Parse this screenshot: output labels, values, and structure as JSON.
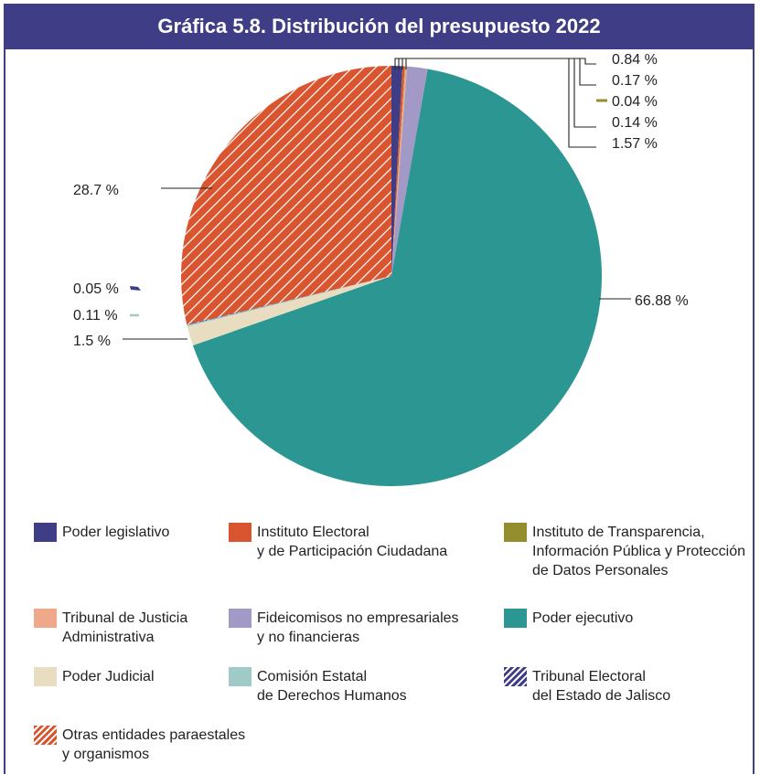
{
  "title": "Gráfica 5.8. Distribución del presupuesto 2022",
  "colors": {
    "frame": "#3f3d86",
    "legislativo": "#3f3d86",
    "electoral": "#d9552f",
    "transparencia": "#958e2f",
    "tribunal_justicia": "#f0a88a",
    "fideicomisos": "#a399c6",
    "ejecutivo": "#2c9692",
    "judicial": "#e8dcc1",
    "derechos_humanos": "#9fcac5",
    "tribunal_electoral": "#3f3d86",
    "otras": "#d9552f"
  },
  "chart_data": {
    "type": "pie",
    "title": "Gráfica 5.8. Distribución del presupuesto 2022",
    "slices": [
      {
        "name": "Poder legislativo",
        "value": 0.84,
        "label": "0.84 %",
        "color": "#3f3d86",
        "pattern": "solid"
      },
      {
        "name": "Instituto Electoral y de Participación Ciudadana",
        "value": 0.17,
        "label": "0.17 %",
        "color": "#d9552f",
        "pattern": "solid"
      },
      {
        "name": "Instituto de Transparencia, Información Pública y Protección de Datos Personales",
        "value": 0.04,
        "label": "0.04 %",
        "color": "#958e2f",
        "pattern": "solid"
      },
      {
        "name": "Tribunal de Justicia Administrativa",
        "value": 0.14,
        "label": "0.14 %",
        "color": "#f0a88a",
        "pattern": "solid"
      },
      {
        "name": "Fideicomisos no empresariales y no financieras",
        "value": 1.57,
        "label": "1.57 %",
        "color": "#a399c6",
        "pattern": "solid"
      },
      {
        "name": "Poder ejecutivo",
        "value": 66.88,
        "label": "66.88 %",
        "color": "#2c9692",
        "pattern": "solid"
      },
      {
        "name": "Poder Judicial",
        "value": 1.5,
        "label": "1.5 %",
        "color": "#e8dcc1",
        "pattern": "solid"
      },
      {
        "name": "Comisión Estatal de Derechos Humanos",
        "value": 0.11,
        "label": "0.11 %",
        "color": "#9fcac5",
        "pattern": "solid"
      },
      {
        "name": "Tribunal Electoral del Estado de Jalisco",
        "value": 0.05,
        "label": "0.05 %",
        "color": "#3f3d86",
        "pattern": "hatch"
      },
      {
        "name": "Otras entidades paraestales y organismos",
        "value": 28.7,
        "label": "28.7 %",
        "color": "#d9552f",
        "pattern": "hatch"
      }
    ],
    "legend_placement": "bottom"
  },
  "legend": [
    {
      "label": "Poder legislativo",
      "color": "#3f3d86",
      "pattern": "solid"
    },
    {
      "label": "Instituto Electoral\ny de Participación Ciudadana",
      "color": "#d9552f",
      "pattern": "solid"
    },
    {
      "label": "Instituto de Transparencia,\nInformación Pública y Protección\nde Datos Personales",
      "color": "#958e2f",
      "pattern": "solid"
    },
    {
      "label": "Tribunal de Justicia\nAdministrativa",
      "color": "#f0a88a",
      "pattern": "solid"
    },
    {
      "label": "Fideicomisos no empresariales\ny no financieras",
      "color": "#a399c6",
      "pattern": "solid"
    },
    {
      "label": "Poder ejecutivo",
      "color": "#2c9692",
      "pattern": "solid"
    },
    {
      "label": "Poder Judicial",
      "color": "#e8dcc1",
      "pattern": "solid"
    },
    {
      "label": "Comisión Estatal\nde Derechos Humanos",
      "color": "#9fcac5",
      "pattern": "solid"
    },
    {
      "label": "Tribunal Electoral\ndel Estado de Jalisco",
      "color": "#3f3d86",
      "pattern": "hatch"
    },
    {
      "label": "Otras entidades paraestales\ny organismos",
      "color": "#d9552f",
      "pattern": "hatch"
    }
  ]
}
